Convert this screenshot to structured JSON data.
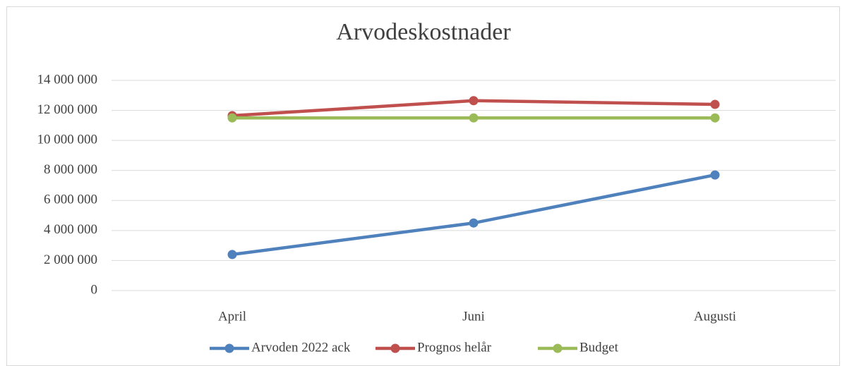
{
  "chart_data": {
    "type": "line",
    "title": "Arvodeskostnader",
    "categories": [
      "April",
      "Juni",
      "Augusti"
    ],
    "series": [
      {
        "name": "Arvoden 2022 ack",
        "color": "#4f81bd",
        "values": [
          2400000,
          4500000,
          7700000
        ]
      },
      {
        "name": "Prognos helår",
        "color": "#c0504d",
        "values": [
          11650000,
          12650000,
          12400000
        ]
      },
      {
        "name": "Budget",
        "color": "#9bbb59",
        "values": [
          11500000,
          11500000,
          11500000
        ]
      }
    ],
    "ylim": [
      0,
      14000000
    ],
    "yticks": [
      0,
      {
        "value": 2000000,
        "label": "2 000 000"
      },
      {
        "value": 4000000,
        "label": "4 000 000"
      },
      {
        "value": 6000000,
        "label": "6 000 000"
      },
      {
        "value": 8000000,
        "label": "8 000 000"
      },
      {
        "value": 10000000,
        "label": "10 000 000"
      },
      {
        "value": 12000000,
        "label": "12 000 000"
      },
      {
        "value": 14000000,
        "label": "14 000 000"
      }
    ],
    "grid": true,
    "legend": "bottom"
  }
}
